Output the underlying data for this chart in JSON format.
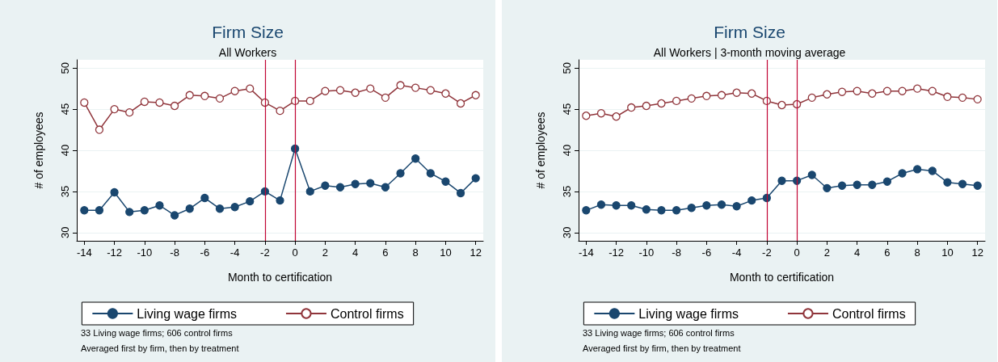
{
  "chart_data": [
    {
      "type": "line",
      "title": "Firm Size",
      "subtitle": "All Workers",
      "xlabel": "Month to certification",
      "ylabel": "# of employees",
      "x": [
        -14,
        -13,
        -12,
        -11,
        -10,
        -9,
        -8,
        -7,
        -6,
        -5,
        -4,
        -3,
        -2,
        -1,
        0,
        1,
        2,
        3,
        4,
        5,
        6,
        7,
        8,
        9,
        10,
        11,
        12
      ],
      "series": [
        {
          "name": "Living wage firms",
          "color": "#1a476f",
          "marker": "circle",
          "values": [
            32.7,
            32.7,
            34.9,
            32.5,
            32.7,
            33.3,
            32.1,
            32.9,
            34.2,
            32.9,
            33.1,
            33.8,
            35.0,
            33.9,
            40.2,
            35.0,
            35.7,
            35.5,
            35.9,
            36.0,
            35.5,
            37.2,
            39.0,
            37.2,
            36.2,
            34.8,
            36.6
          ]
        },
        {
          "name": "Control firms",
          "color": "#90353b",
          "marker": "hollow circle",
          "values": [
            45.8,
            42.5,
            45.0,
            44.6,
            45.9,
            45.8,
            45.4,
            46.7,
            46.6,
            46.3,
            47.2,
            47.5,
            45.8,
            44.8,
            46.0,
            46.0,
            47.2,
            47.3,
            47.0,
            47.5,
            46.4,
            47.9,
            47.6,
            47.3,
            46.9,
            45.7,
            46.7
          ]
        }
      ],
      "xlim": [
        -14.5,
        12.5
      ],
      "xticks": [
        -14,
        -12,
        -10,
        -8,
        -6,
        -4,
        -2,
        0,
        2,
        4,
        6,
        8,
        10,
        12
      ],
      "ylim": [
        29,
        51
      ],
      "yticks": [
        30,
        35,
        40,
        45,
        50
      ],
      "grid": "y",
      "legend": "bottom",
      "ref_lines": [
        {
          "axis": "x",
          "value": -2,
          "color": "#c10534"
        },
        {
          "axis": "x",
          "value": 0,
          "color": "#c10534"
        }
      ],
      "annotations": [
        "33 Living wage firms; 606 control firms",
        "Averaged first by firm, then by treatment"
      ]
    },
    {
      "type": "line",
      "title": "Firm Size",
      "subtitle": "All Workers | 3-month moving average",
      "xlabel": "Month to certification",
      "ylabel": "# of employees",
      "x": [
        -14,
        -13,
        -12,
        -11,
        -10,
        -9,
        -8,
        -7,
        -6,
        -5,
        -4,
        -3,
        -2,
        -1,
        0,
        1,
        2,
        3,
        4,
        5,
        6,
        7,
        8,
        9,
        10,
        11,
        12
      ],
      "series": [
        {
          "name": "Living wage firms",
          "color": "#1a476f",
          "marker": "circle",
          "values": [
            32.7,
            33.4,
            33.3,
            33.3,
            32.8,
            32.7,
            32.7,
            33.0,
            33.3,
            33.4,
            33.2,
            33.9,
            34.2,
            36.3,
            36.3,
            37.0,
            35.4,
            35.7,
            35.8,
            35.8,
            36.2,
            37.2,
            37.7,
            37.5,
            36.1,
            35.9,
            35.7
          ]
        },
        {
          "name": "Control firms",
          "color": "#90353b",
          "marker": "hollow circle",
          "values": [
            44.2,
            44.5,
            44.1,
            45.2,
            45.4,
            45.7,
            46.0,
            46.3,
            46.6,
            46.7,
            47.0,
            46.9,
            46.0,
            45.5,
            45.6,
            46.4,
            46.8,
            47.1,
            47.2,
            46.9,
            47.2,
            47.2,
            47.5,
            47.2,
            46.5,
            46.4,
            46.2
          ]
        }
      ],
      "xlim": [
        -14.5,
        12.5
      ],
      "xticks": [
        -14,
        -12,
        -10,
        -8,
        -6,
        -4,
        -2,
        0,
        2,
        4,
        6,
        8,
        10,
        12
      ],
      "ylim": [
        29,
        51
      ],
      "yticks": [
        30,
        35,
        40,
        45,
        50
      ],
      "grid": "y",
      "legend": "bottom",
      "ref_lines": [
        {
          "axis": "x",
          "value": -2,
          "color": "#c10534"
        },
        {
          "axis": "x",
          "value": 0,
          "color": "#c10534"
        }
      ],
      "annotations": [
        "33 Living wage firms; 606 control firms",
        "Averaged first by firm, then by treatment"
      ]
    }
  ]
}
